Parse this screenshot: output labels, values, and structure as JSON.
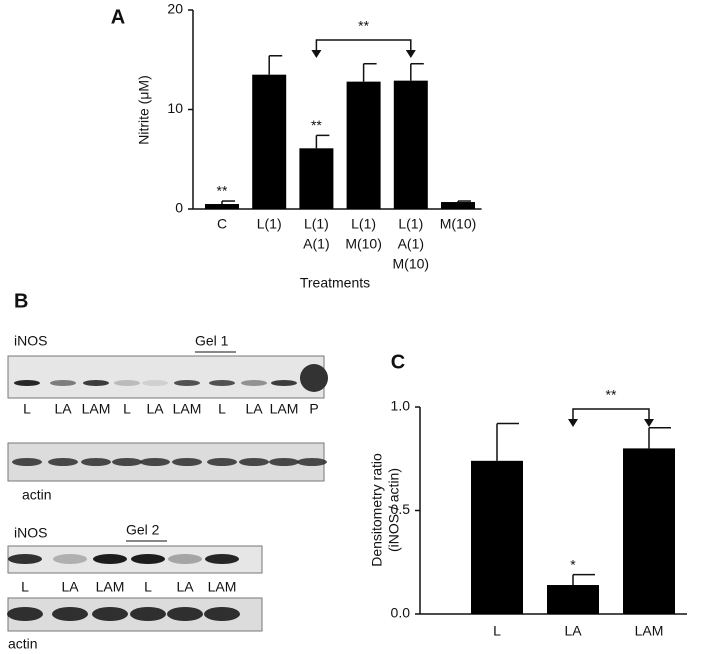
{
  "chart_data": [
    {
      "type": "bar",
      "panel": "A",
      "ylabel": "Nitrite (μM)",
      "xlabel": "Treatments",
      "categories": [
        [
          "C"
        ],
        [
          "L(1)"
        ],
        [
          "L(1)",
          "A(1)"
        ],
        [
          "L(1)",
          "M(10)"
        ],
        [
          "L(1)",
          "A(1)",
          "M(10)"
        ],
        [
          "M(10)"
        ]
      ],
      "values": [
        0.5,
        13.5,
        6.1,
        12.8,
        12.9,
        0.7
      ],
      "errors": [
        0.3,
        1.9,
        1.3,
        1.8,
        1.7,
        0.1
      ],
      "bar_annotations": [
        "**",
        null,
        "**",
        null,
        null,
        null
      ],
      "comparison_label": "**",
      "compared": [
        false,
        false,
        true,
        false,
        true,
        false
      ],
      "color": "#000000",
      "ylim": [
        0,
        20
      ],
      "yticks": [
        0,
        10,
        20
      ]
    },
    {
      "type": "bar",
      "panel": "C",
      "ylabel": [
        "Densitometry ratio",
        "(iNOS / actin)"
      ],
      "categories": [
        [
          "L"
        ],
        [
          "LA"
        ],
        [
          "LAM"
        ]
      ],
      "values": [
        0.74,
        0.14,
        0.8
      ],
      "errors": [
        0.18,
        0.05,
        0.1
      ],
      "bar_annotations": [
        null,
        "*",
        null
      ],
      "comparison_label": "**",
      "compared": [
        false,
        true,
        true
      ],
      "color": "#000000",
      "ylim": [
        0,
        1.0
      ],
      "yticks": [
        {
          "value": 0,
          "label": "0.0"
        },
        {
          "value": 0.5,
          "label": "0.5"
        },
        {
          "value": 1.0,
          "label": "1.0"
        }
      ]
    }
  ],
  "blots": {
    "panel": "B",
    "gel1": {
      "target": "iNOS",
      "title": "Gel 1",
      "lanes": [
        "L",
        "LA",
        "LAM",
        "L",
        "LA",
        "LAM",
        "L",
        "LA",
        "LAM",
        "P"
      ],
      "control": "actin"
    },
    "gel2": {
      "target": "iNOS",
      "title": "Gel 2",
      "lanes": [
        "L",
        "LA",
        "LAM",
        "L",
        "LA",
        "LAM"
      ],
      "control": "actin"
    }
  }
}
